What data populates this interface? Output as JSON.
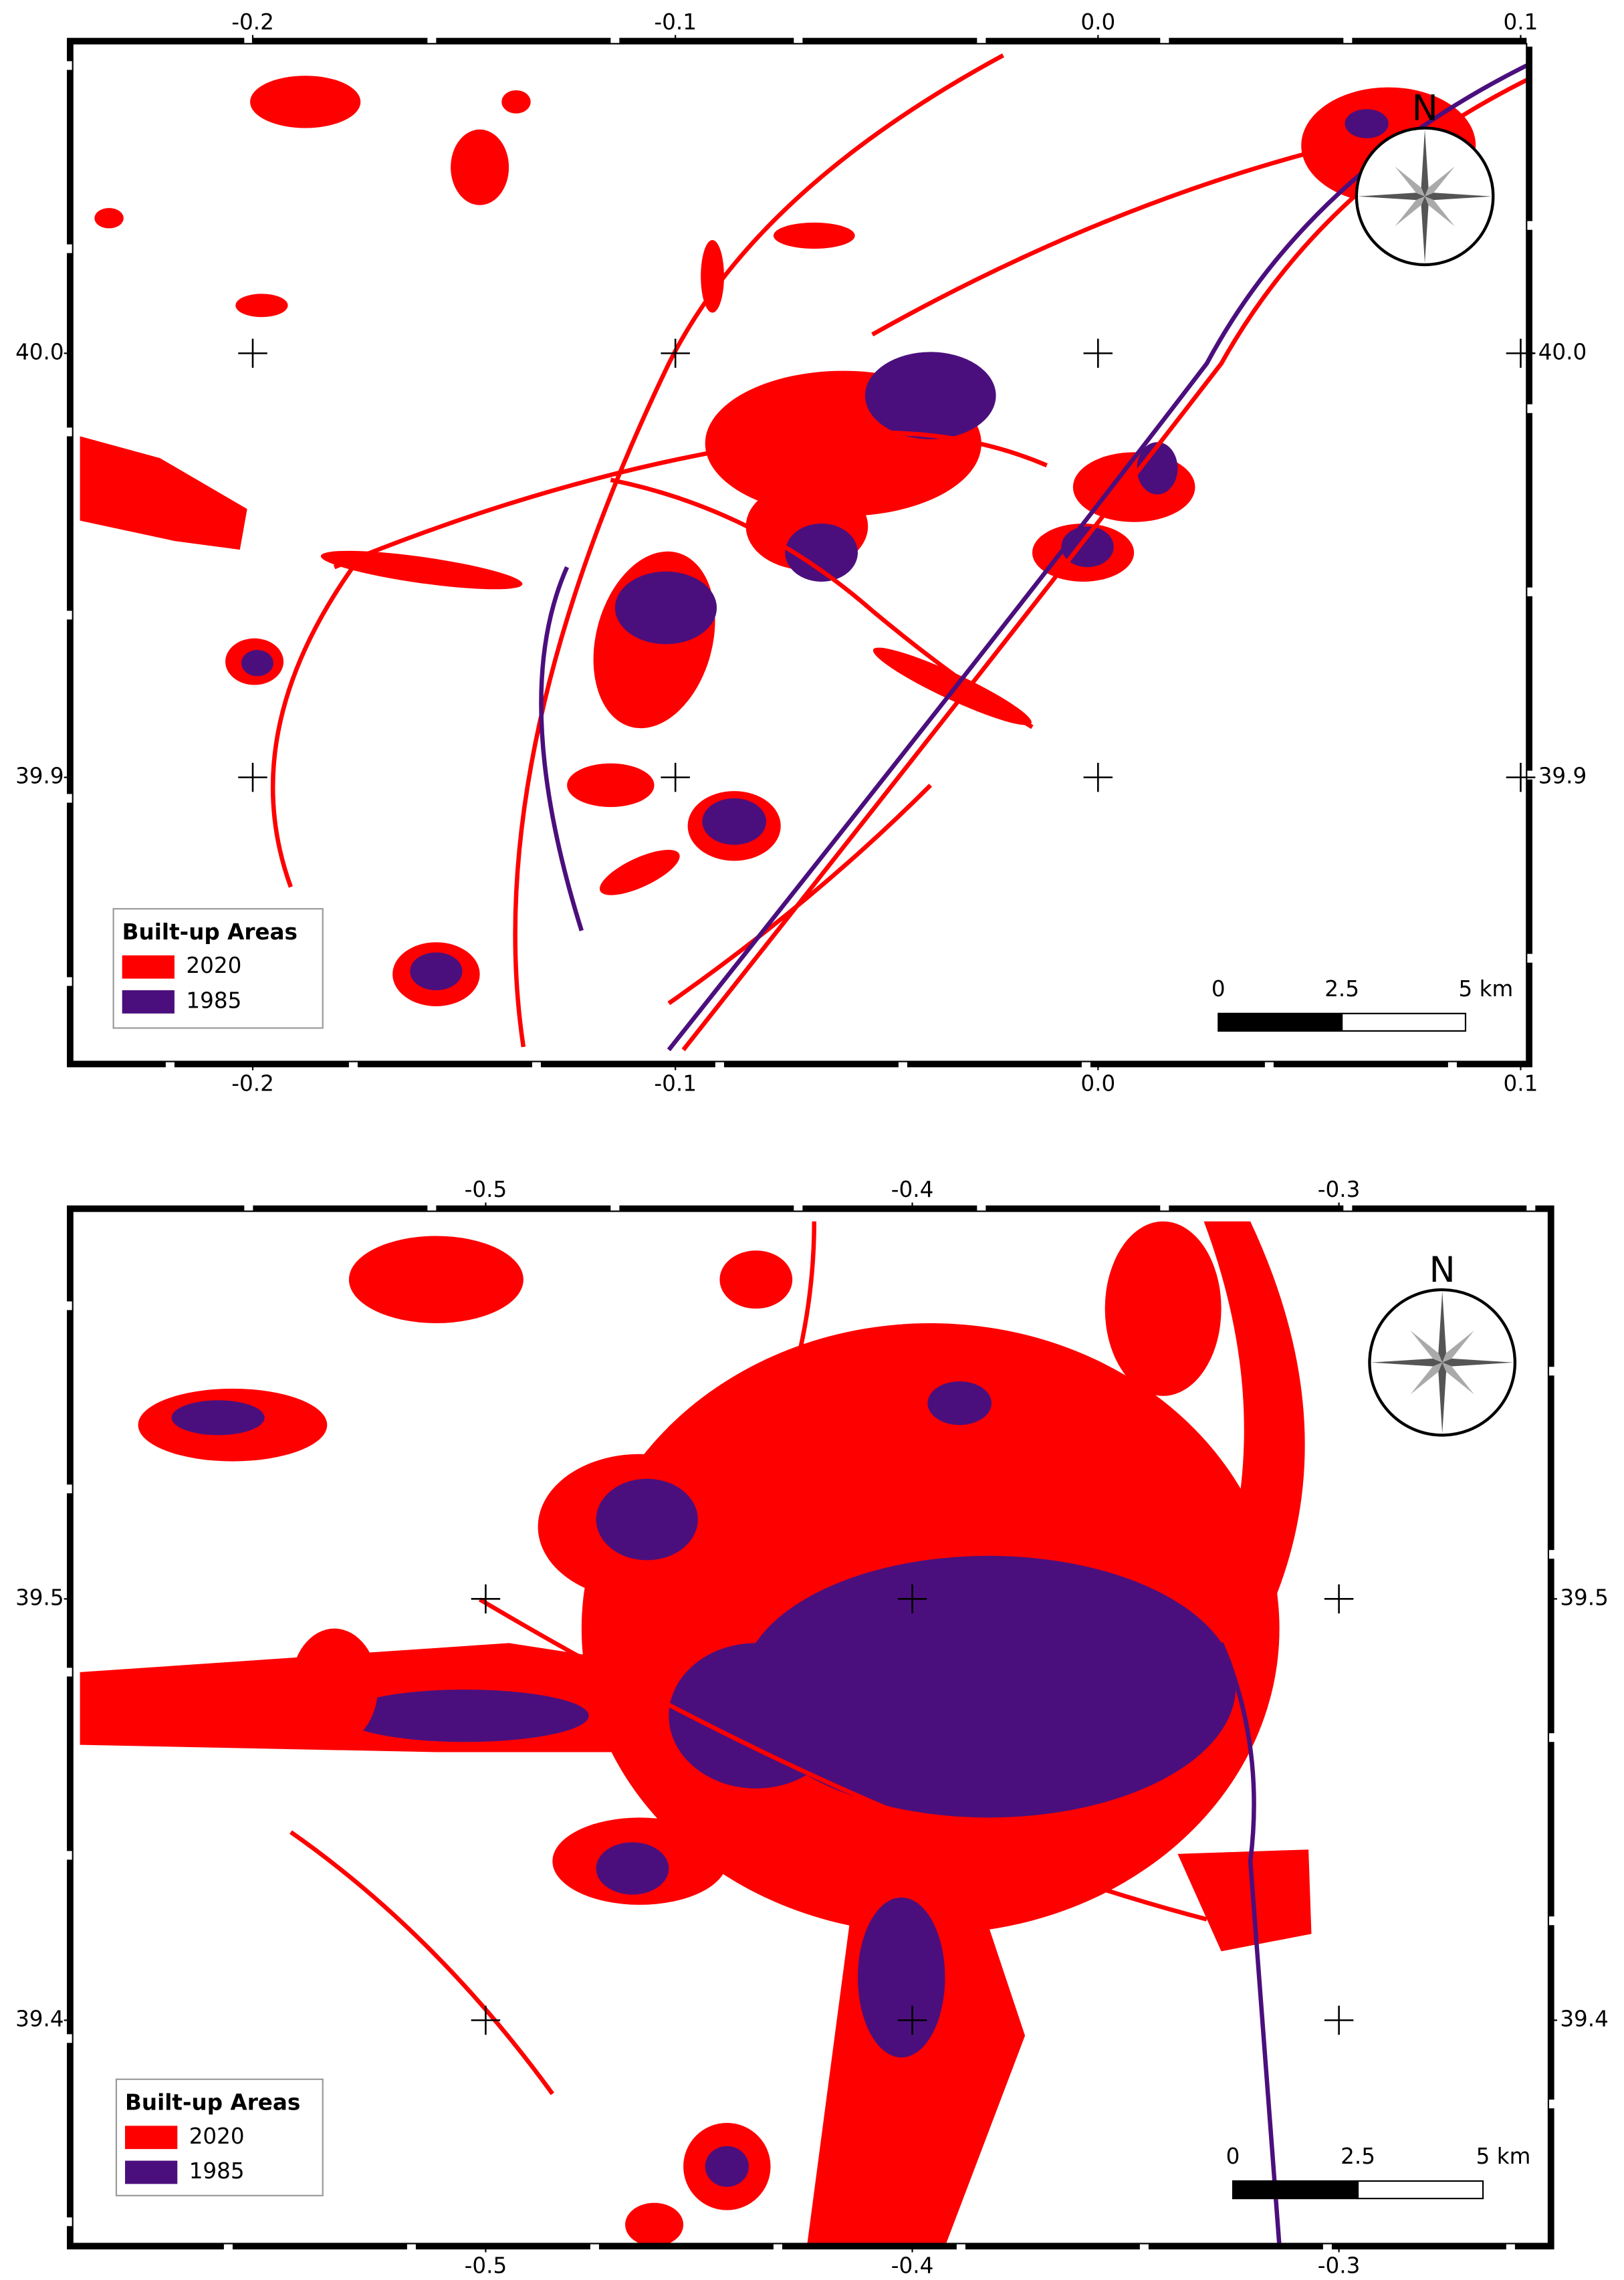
{
  "maps": [
    {
      "xlim": [
        -0.2426,
        0.1014
      ],
      "ylim": [
        39.833,
        40.073
      ],
      "xticks": [
        -0.2,
        -0.1,
        {
          "value": 0,
          "label": "0.0"
        },
        0.1
      ],
      "yticks": [
        {
          "value": 40,
          "label": "40.0"
        },
        39.9
      ],
      "north": "N",
      "legend": {
        "title": "Built-up Areas",
        "items": [
          {
            "label": "2020",
            "color": "#ff0000"
          },
          {
            "label": "1985",
            "color": "#4b0f7d"
          }
        ]
      },
      "scale_bar": [
        "0",
        "2.5",
        "5 km"
      ]
    },
    {
      "xlim": [
        -0.5968,
        -0.2509
      ],
      "ylim": [
        39.347,
        39.592
      ],
      "xticks": [
        -0.5,
        -0.4,
        -0.3
      ],
      "yticks": [
        39.5,
        39.4
      ],
      "north": "N",
      "legend": {
        "title": "Built-up Areas",
        "items": [
          {
            "label": "2020",
            "color": "#ff0000"
          },
          {
            "label": "1985",
            "color": "#4b0f7d"
          }
        ]
      },
      "scale_bar": [
        "0",
        "2.5",
        "5 km"
      ]
    }
  ]
}
